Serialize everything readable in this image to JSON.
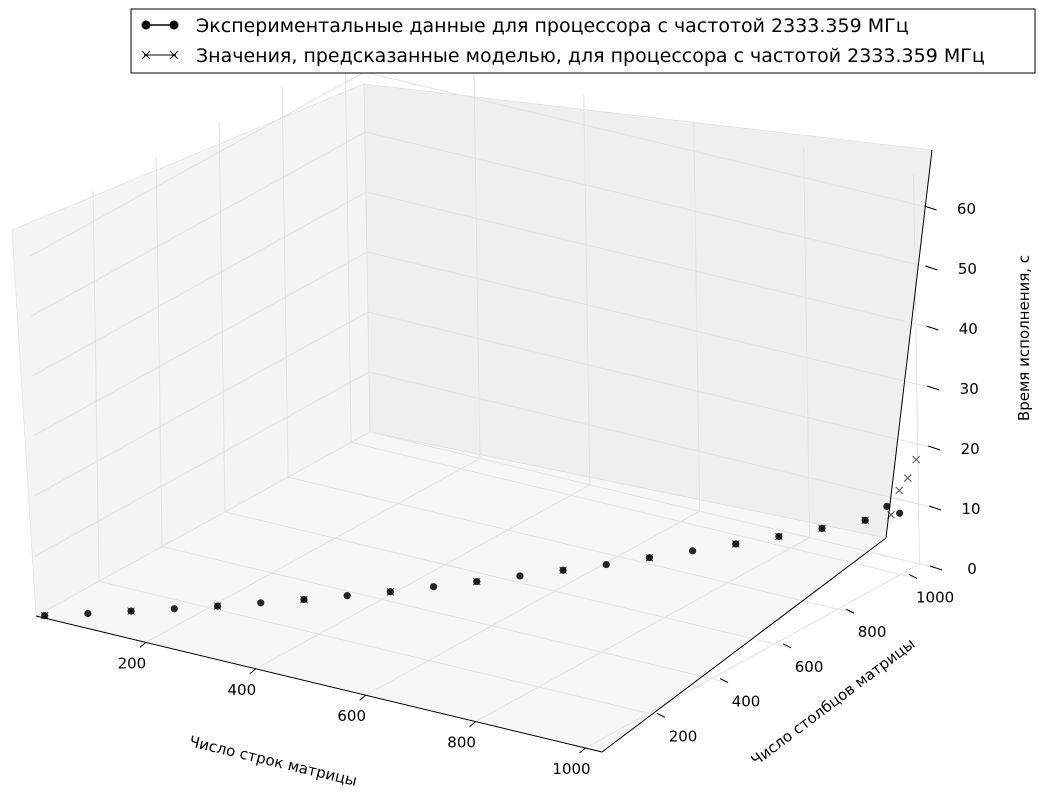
{
  "chart_data": {
    "type": "scatter",
    "projection": "3d",
    "grid": true,
    "legend_position": "top",
    "xlabel": "Число строк матрицы",
    "ylabel": "Число столбцов матрицы",
    "zlabel": "Время исполнения, с",
    "xlim": [
      0,
      1030
    ],
    "ylim": [
      0,
      1060
    ],
    "zlim": [
      0,
      65
    ],
    "xticks": [
      200,
      400,
      600,
      800,
      1000
    ],
    "yticks": [
      200,
      400,
      600,
      800,
      1000
    ],
    "zticks": [
      0,
      10,
      20,
      30,
      40,
      50,
      60
    ],
    "series": [
      {
        "name": "Экспериментальные данные для процессора с частотой 2333.359 МГц",
        "marker": "circle",
        "color": "#000000",
        "x": [
          10,
          60,
          110,
          160,
          210,
          260,
          310,
          360,
          410,
          460,
          510,
          560,
          610,
          660,
          710,
          760,
          810,
          860,
          910,
          960,
          1000,
          1000
        ],
        "y": [
          10,
          60,
          110,
          160,
          210,
          260,
          310,
          360,
          410,
          460,
          510,
          560,
          610,
          660,
          710,
          760,
          810,
          860,
          910,
          960,
          1000,
          960
        ],
        "z": [
          0.0,
          0.0,
          0.05,
          0.1,
          0.2,
          0.4,
          0.6,
          0.9,
          1.2,
          1.7,
          2.2,
          2.8,
          3.4,
          4.0,
          4.8,
          5.6,
          6.4,
          7.3,
          8.3,
          9.3,
          10.2,
          12.5
        ]
      },
      {
        "name": "Значения, предсказанные моделью, для процессора с частотой 2333.359 МГц",
        "marker": "x",
        "color": "#000000",
        "x": [
          10,
          110,
          210,
          310,
          410,
          510,
          610,
          710,
          810,
          860,
          910,
          960,
          990,
          1000,
          1010,
          1020
        ],
        "y": [
          10,
          110,
          210,
          310,
          410,
          510,
          610,
          710,
          810,
          860,
          910,
          960,
          990,
          1000,
          1010,
          1020
        ],
        "z": [
          0.0,
          0.05,
          0.2,
          0.6,
          1.2,
          2.2,
          3.4,
          4.8,
          6.4,
          7.3,
          8.3,
          9.3,
          10.0,
          14.0,
          16.0,
          19.0
        ]
      }
    ]
  }
}
